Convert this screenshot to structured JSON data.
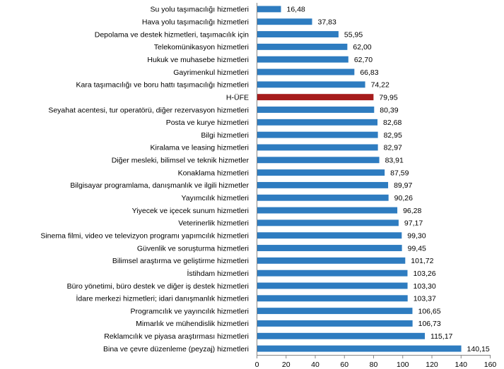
{
  "chart_data": {
    "type": "bar",
    "orientation": "horizontal",
    "title": "",
    "xlabel": "",
    "ylabel": "",
    "xlim": [
      0,
      160
    ],
    "x_ticks": [
      0,
      20,
      40,
      60,
      80,
      100,
      120,
      140,
      160
    ],
    "grid": false,
    "legend": "none",
    "colors": {
      "default": "#2E7CC0",
      "highlight": "#A61C1C"
    },
    "highlight_category": "H-ÜFE",
    "categories": [
      "Su yolu taşımacılığı hizmetleri",
      "Hava yolu taşımacılığı hizmetleri",
      "Depolama ve destek hizmetleri, taşımacılık için",
      "Telekomünikasyon hizmetleri",
      "Hukuk ve muhasebe hizmetleri",
      "Gayrimenkul hizmetleri",
      "Kara taşımacılığı ve boru hattı taşımacılığı hizmetleri",
      "H-ÜFE",
      "Seyahat acentesi, tur operatörü, diğer rezervasyon hizmetleri",
      "Posta ve kurye hizmetleri",
      "Bilgi hizmetleri",
      "Kiralama ve leasing hizmetleri",
      "Diğer mesleki, bilimsel ve teknik hizmetler",
      "Konaklama hizmetleri",
      "Bilgisayar programlama, danışmanlık ve ilgili hizmetler",
      "Yayımcılık hizmetleri",
      "Yiyecek ve içecek sunum hizmetleri",
      "Veterinerlik hizmetleri",
      "Sinema filmi, video ve televizyon programı yapımcılık hizmetleri",
      "Güvenlik ve soruşturma hizmetleri",
      "Bilimsel araştırma ve geliştirme hizmetleri",
      "İstihdam hizmetleri",
      "Büro yönetimi, büro destek ve diğer iş destek hizmetleri",
      "İdare merkezi hizmetleri; idari danışmanlık hizmetleri",
      "Programcılık ve yayıncılık hizmetleri",
      "Mimarlık ve mühendislik hizmetleri",
      "Reklamcılık ve piyasa araştırması hizmetleri",
      "Bina ve çevre düzenleme (peyzaj) hizmetleri"
    ],
    "values": [
      16.48,
      37.83,
      55.95,
      62.0,
      62.7,
      66.83,
      74.22,
      79.95,
      80.39,
      82.68,
      82.95,
      82.97,
      83.91,
      87.59,
      89.97,
      90.26,
      96.28,
      97.17,
      99.3,
      99.45,
      101.72,
      103.26,
      103.3,
      103.37,
      106.65,
      106.73,
      115.17,
      140.15
    ],
    "value_labels": [
      "16,48",
      "37,83",
      "55,95",
      "62,00",
      "62,70",
      "66,83",
      "74,22",
      "79,95",
      "80,39",
      "82,68",
      "82,95",
      "82,97",
      "83,91",
      "87,59",
      "89,97",
      "90,26",
      "96,28",
      "97,17",
      "99,30",
      "99,45",
      "101,72",
      "103,26",
      "103,30",
      "103,37",
      "106,65",
      "106,73",
      "115,17",
      "140,15"
    ]
  }
}
